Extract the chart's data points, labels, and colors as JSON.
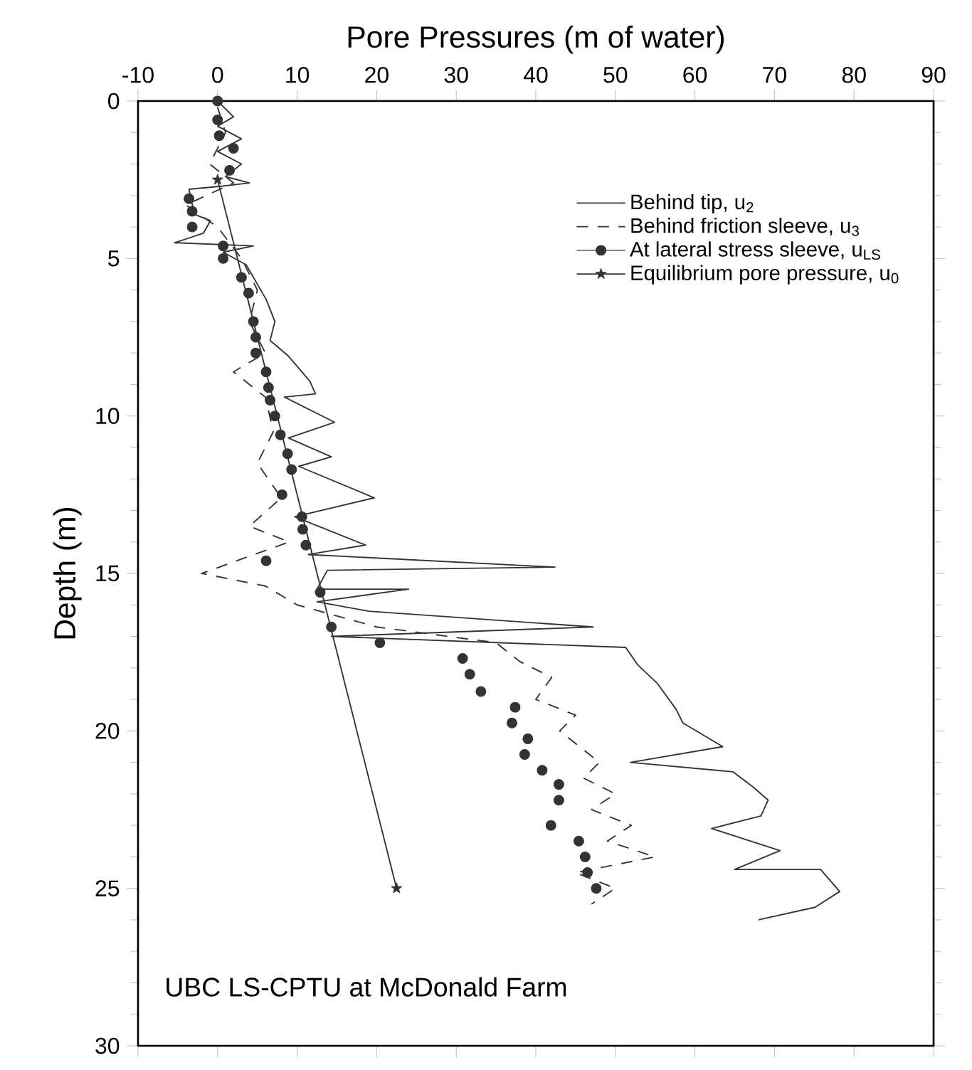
{
  "chart_data": {
    "type": "line",
    "xlabel": "Pore Pressures (m of water)",
    "ylabel": "Depth (m)",
    "xlim": [
      -10,
      90
    ],
    "xticks": [
      -10,
      0,
      10,
      20,
      30,
      40,
      50,
      60,
      70,
      80,
      90
    ],
    "ylim": [
      30,
      0
    ],
    "yticks": [
      0,
      5,
      10,
      15,
      20,
      25,
      30
    ],
    "legend": "top right",
    "annotations": [
      "UBC LS-CPTU at McDonald Farm"
    ],
    "series": [
      {
        "name": "Behind tip, u$_{2}$",
        "line_style": "solid",
        "marker": "none",
        "color": "#333333",
        "x": [
          0,
          2,
          0,
          3,
          0,
          3,
          1,
          4,
          0.7,
          -3.6,
          -2.9,
          -0.9,
          -1.8,
          -5.4,
          4.5,
          0.7,
          3.6,
          6.1,
          7.2,
          6.6,
          8.9,
          11.6,
          12.3,
          8.4,
          14.7,
          8.9,
          14.3,
          10.2,
          19.7,
          9.7,
          18.6,
          11.4,
          42.4,
          13.8,
          12.5,
          24,
          12.5,
          19,
          47.2,
          14.3,
          51.3,
          52.8,
          55.3,
          57.6,
          58.5,
          63.5,
          51.9,
          64.8,
          67.4,
          69.2,
          68.3,
          62.1,
          70.7,
          65,
          75.8,
          78.2,
          75.1,
          68
        ],
        "values": [
          0,
          0.5,
          0.8,
          1.2,
          1.6,
          2.0,
          2.4,
          2.6,
          2.7,
          2.8,
          3.6,
          3.8,
          4.2,
          4.5,
          4.6,
          4.8,
          5.2,
          6.3,
          7.0,
          7.6,
          8.1,
          8.9,
          9.3,
          9.4,
          10.2,
          10.7,
          11.3,
          11.6,
          12.6,
          13.2,
          14.1,
          14.4,
          14.8,
          14.9,
          15.5,
          15.5,
          15.9,
          16.2,
          16.7,
          17.0,
          17.35,
          17.9,
          18.5,
          19.3,
          19.75,
          20.5,
          21.0,
          21.3,
          21.8,
          22.2,
          22.7,
          23.1,
          23.8,
          24.4,
          24.4,
          25.1,
          25.6,
          26.0
        ]
      },
      {
        "name": "Behind friction sleeve, u$_{3}$",
        "line_style": "dashed",
        "marker": "none",
        "color": "#333333",
        "x": [
          0,
          1,
          -1,
          2,
          -4,
          0,
          3,
          5,
          4,
          6,
          2,
          6,
          7,
          5,
          8,
          4,
          9,
          -2,
          6,
          10,
          20,
          35,
          38,
          42,
          40,
          45,
          43,
          48,
          46,
          50,
          47,
          52,
          49,
          55,
          45,
          50,
          47
        ],
        "values": [
          0.2,
          1,
          2,
          2.6,
          3.3,
          4,
          5,
          6,
          7,
          8,
          8.6,
          9.4,
          10.5,
          11.5,
          12.6,
          13.5,
          14,
          15,
          15.4,
          16,
          16.7,
          17.2,
          17.8,
          18.3,
          19,
          19.5,
          20,
          21,
          21.5,
          22,
          22.5,
          23,
          23.5,
          24,
          24.5,
          25,
          25.5
        ]
      },
      {
        "name": "At lateral stress sleeve, u$_{LS}$",
        "type": "scatter",
        "marker": "circle",
        "color": "#333333",
        "x": [
          0,
          0,
          0.2,
          2.0,
          1.5,
          -3.6,
          -3.2,
          -3.2,
          0.7,
          0.7,
          3.0,
          3.9,
          4.5,
          4.8,
          4.8,
          6.1,
          6.4,
          6.6,
          7.2,
          7.9,
          8.8,
          9.3,
          8.1,
          10.6,
          10.7,
          11.1,
          6.1,
          12.9,
          14.3,
          20.4,
          30.8,
          31.7,
          33.1,
          37.4,
          37.0,
          39.0,
          38.6,
          40.8,
          42.9,
          42.9,
          41.9,
          45.4,
          46.2,
          46.5,
          47.6
        ],
        "values": [
          0,
          0.6,
          1.1,
          1.5,
          2.2,
          3.1,
          3.5,
          4.0,
          4.6,
          5.0,
          5.6,
          6.1,
          7.0,
          7.5,
          8.0,
          8.6,
          9.1,
          9.5,
          10.0,
          10.6,
          11.2,
          11.7,
          12.5,
          13.2,
          13.6,
          14.1,
          14.6,
          15.6,
          16.7,
          17.2,
          17.7,
          18.2,
          18.75,
          19.25,
          19.75,
          20.25,
          20.75,
          21.25,
          21.7,
          22.2,
          23.0,
          23.5,
          24.0,
          24.5,
          25.0
        ]
      },
      {
        "name": "Equilibrium pore pressure, u$_{0}$",
        "line_style": "solid",
        "marker": "star",
        "color": "#333333",
        "x": [
          0,
          22.5
        ],
        "values": [
          2.5,
          25
        ]
      }
    ]
  }
}
